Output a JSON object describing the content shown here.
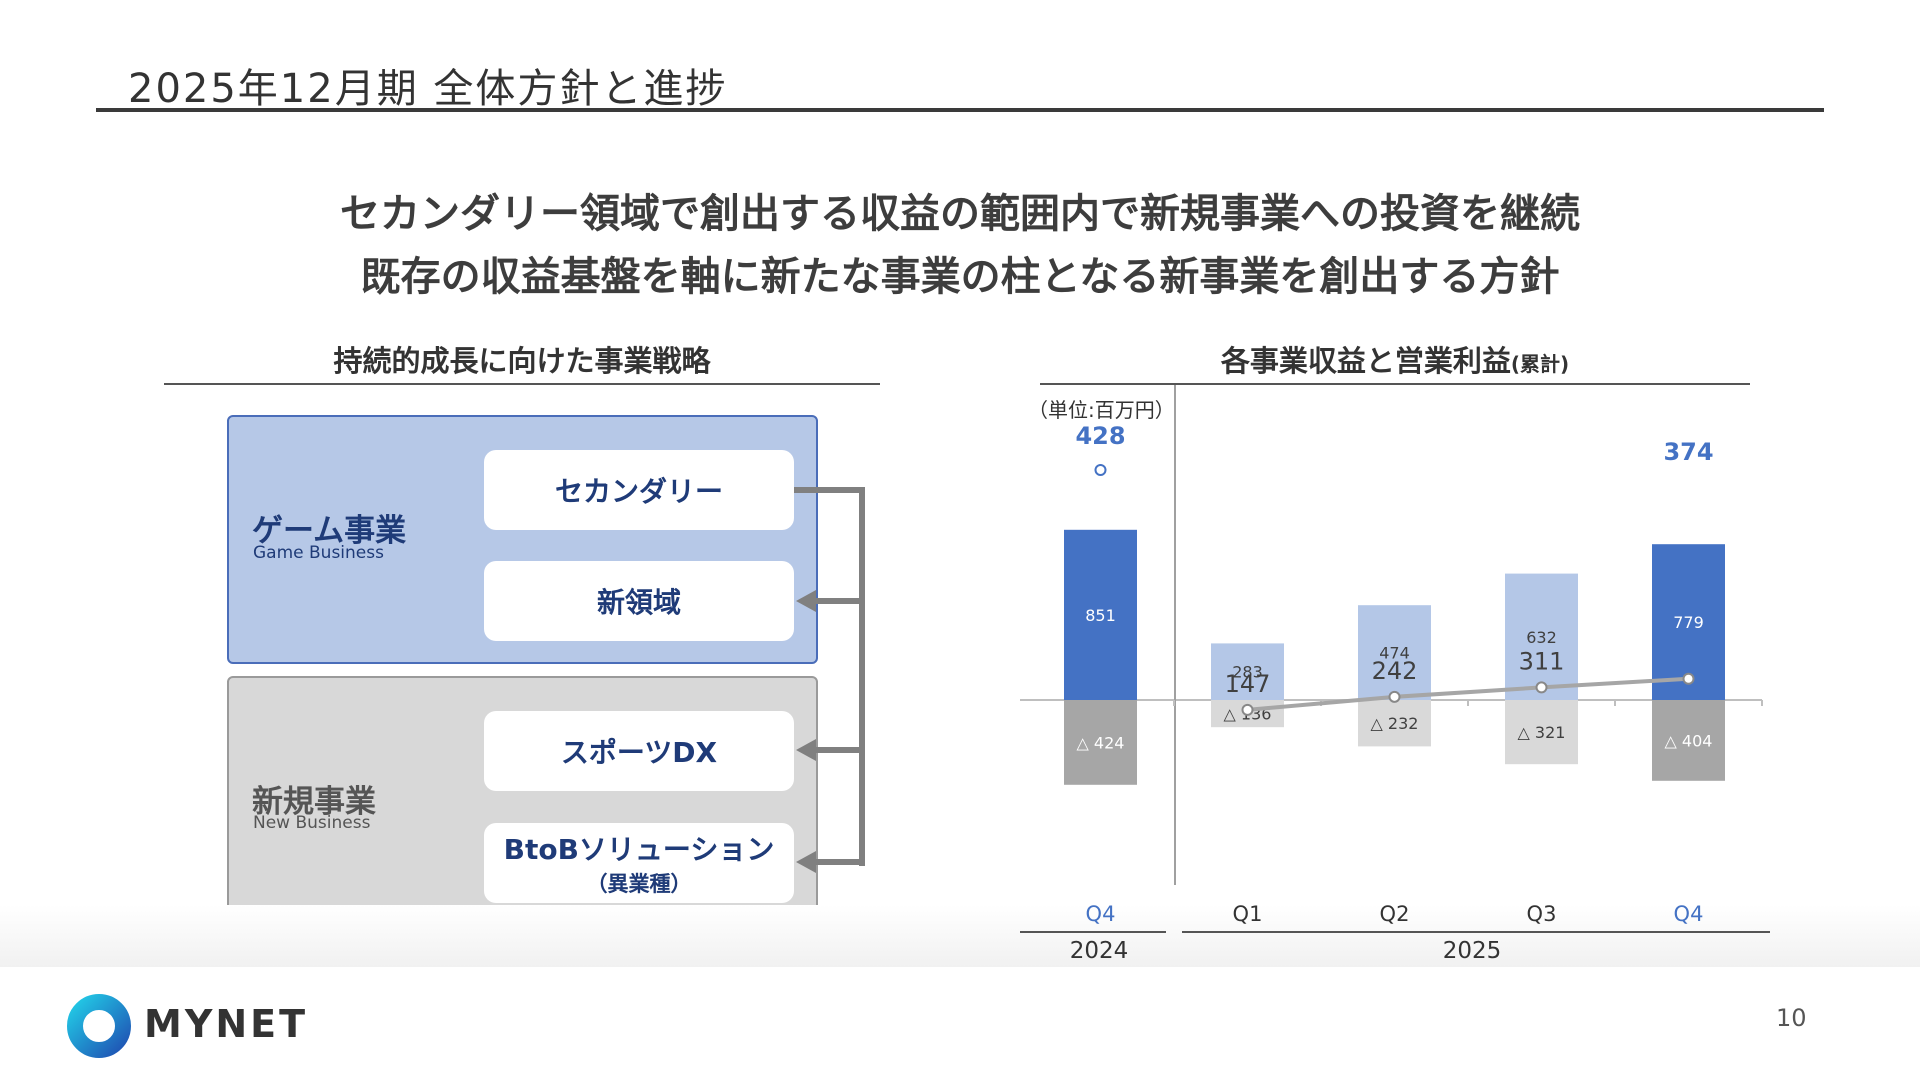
{
  "page": {
    "title": "2025年12月期 全体方針と進捗",
    "headline": [
      "セカンダリー領域で創出する収益の範囲内で新規事業への投資を継続",
      "既存の収益基盤を軸に新たな事業の柱となる新事業を創出する方針"
    ],
    "page_number": "10"
  },
  "strategy": {
    "title": "持続的成長に向けた事業戦略",
    "game": {
      "name": "ゲーム事業",
      "sub": "Game Business",
      "items": [
        {
          "label": "セカンダリー"
        },
        {
          "label": "新領域"
        }
      ]
    },
    "new": {
      "name": "新規事業",
      "sub": "New Business",
      "items": [
        {
          "label": "スポーツDX"
        },
        {
          "label": "BtoBソリューション",
          "sub": "（異業種）"
        }
      ]
    },
    "colors": {
      "game_panel": "#b6c8e7",
      "new_panel": "#d8d8d8",
      "arrow": "#808080"
    }
  },
  "logo": {
    "text": "MYNET",
    "icon": "mynet-ring-logo-icon"
  },
  "chart_data": {
    "type": "bar",
    "title": "各事業収益と営業利益",
    "title_suffix": "(累計)",
    "unit": "（単位:百万円）",
    "categories": [
      "Q4",
      "Q1",
      "Q2",
      "Q3",
      "Q4"
    ],
    "year_groups": [
      {
        "label": "2024",
        "span": 1
      },
      {
        "label": "2025",
        "span": 4
      }
    ],
    "revenue": [
      851,
      283,
      474,
      632,
      779
    ],
    "revenue_labels": [
      "851",
      "283",
      "474",
      "632",
      "779"
    ],
    "loss": [
      -424,
      -136,
      -232,
      -321,
      -404
    ],
    "loss_labels": [
      "△ 424",
      "△ 136",
      "△ 232",
      "△ 321",
      "△ 404"
    ],
    "profit_line": [
      428,
      147,
      242,
      311,
      374
    ],
    "profit_labels": [
      "428",
      "147",
      "242",
      "311",
      "374"
    ],
    "highlight": [
      true,
      false,
      false,
      false,
      true
    ],
    "colors": {
      "highlight_bar": "#4472c4",
      "normal_bar": "#b4c7e7",
      "highlight_loss": "#a6a6a6",
      "normal_loss": "#d9d9d9",
      "line": "#a6a6a6",
      "highlight_text": "#4472c4",
      "normal_text": "#404040"
    }
  }
}
